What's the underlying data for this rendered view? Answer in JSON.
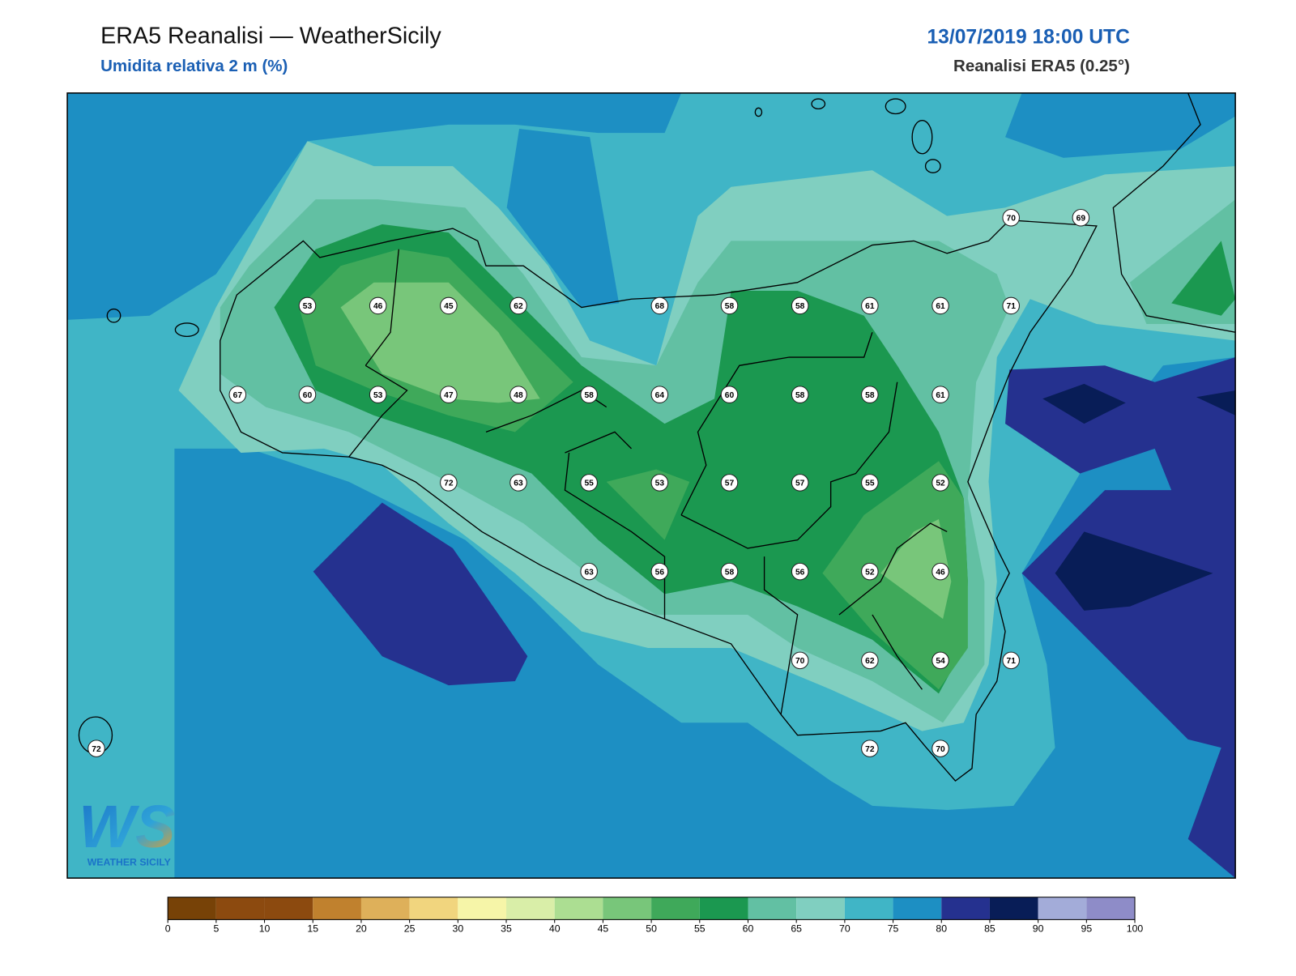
{
  "header": {
    "title": "ERA5 Reanalisi — WeatherSicily",
    "subtitle": "Umidita relativa 2 m (%)",
    "datetime": "13/07/2019 18:00 UTC",
    "source": "Reanalisi ERA5 (0.25°)"
  },
  "stations": [
    70,
    69,
    53,
    46,
    45,
    62,
    68,
    58,
    58,
    61,
    61,
    71,
    67,
    60,
    53,
    47,
    48,
    58,
    64,
    60,
    58,
    58,
    61,
    72,
    63,
    55,
    53,
    57,
    57,
    55,
    52,
    63,
    56,
    58,
    56,
    52,
    46,
    70,
    62,
    54,
    71,
    72,
    72,
    70
  ],
  "colorbar": {
    "ticks": [
      0,
      5,
      10,
      15,
      20,
      25,
      30,
      35,
      40,
      45,
      50,
      55,
      60,
      65,
      70,
      75,
      80,
      85,
      90,
      95,
      100
    ],
    "colors": [
      "#774207",
      "#8c4a0f",
      "#8c4a0f",
      "#c0812e",
      "#deb05a",
      "#f1d57e",
      "#f6f5a8",
      "#d9eea8",
      "#acde92",
      "#78c67a",
      "#3fa95a",
      "#1b9850",
      "#62c0a3",
      "#80cfc0",
      "#40b5c6",
      "#1d8fc3",
      "#25318f",
      "#081d57",
      "#a3acd9",
      "#8e8cc8"
    ]
  },
  "logo": {
    "mark": "WS",
    "text": "WEATHER SICILY"
  }
}
